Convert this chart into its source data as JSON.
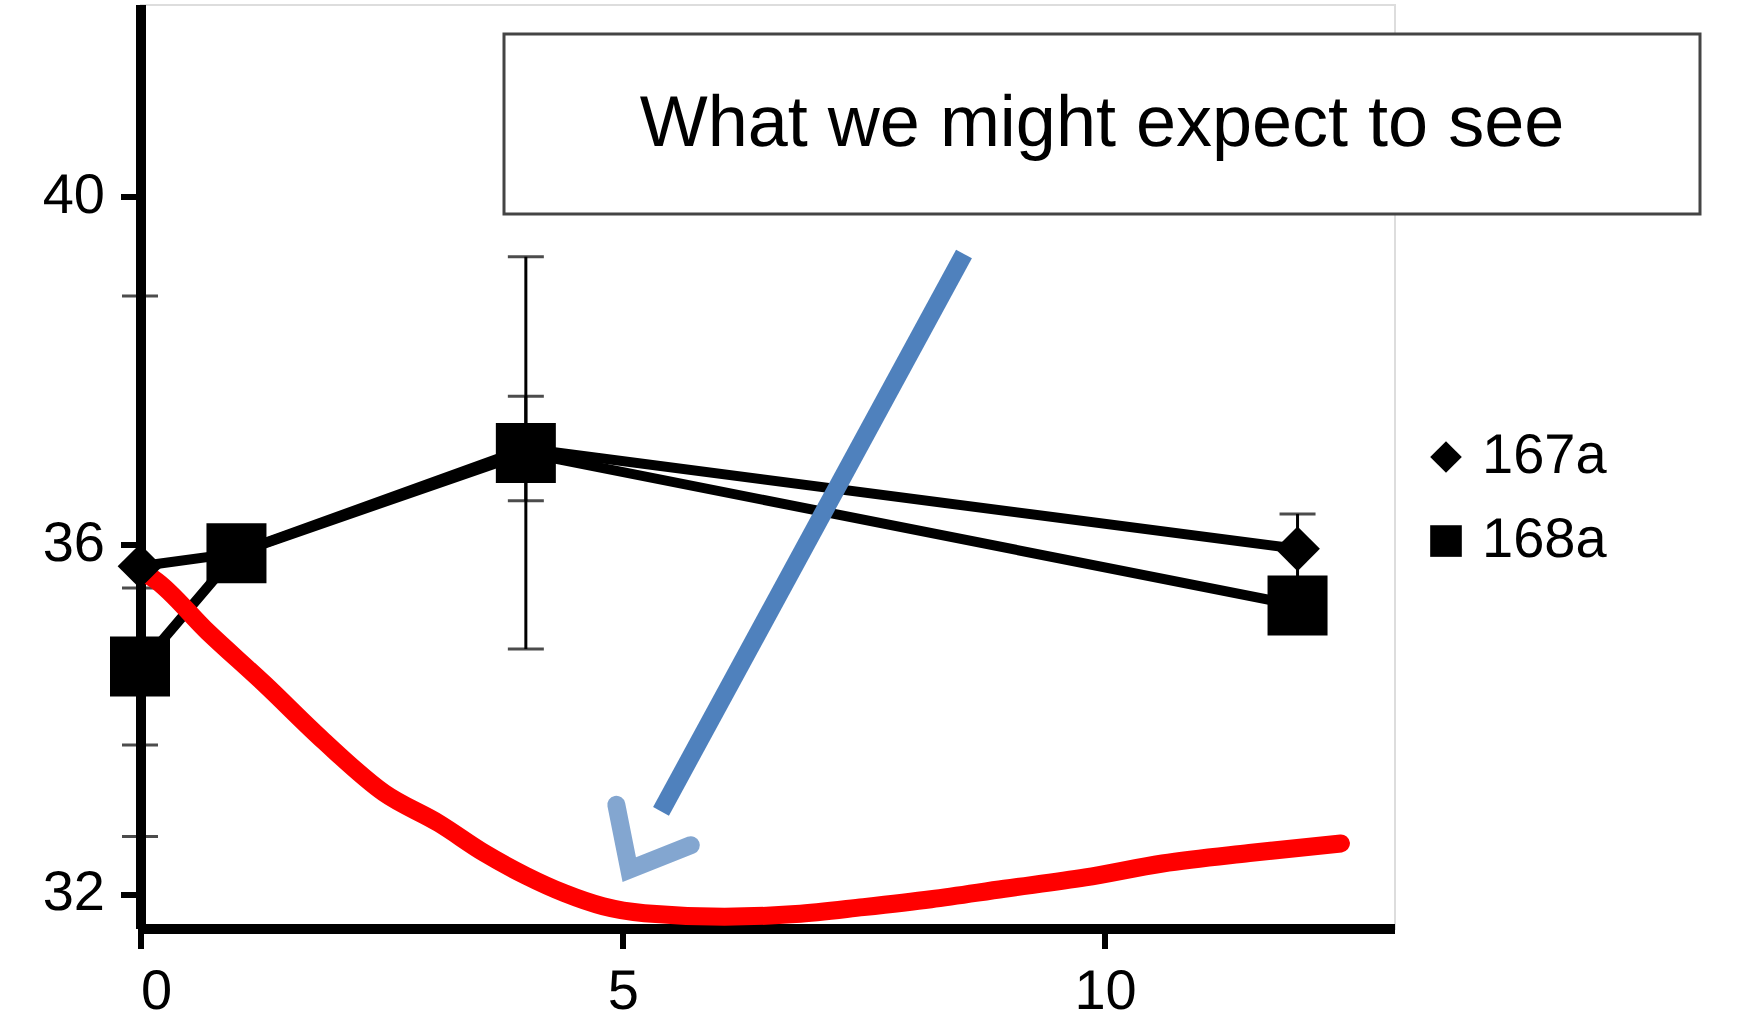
{
  "chart_data": {
    "type": "line",
    "xlim": [
      0,
      13
    ],
    "ylim": [
      31.6,
      42.2
    ],
    "xticks": [
      0,
      5,
      10
    ],
    "yticks": [
      32,
      36,
      40
    ],
    "grid": false,
    "legend": "right",
    "line_style": "solid",
    "series": [
      {
        "name": "167a",
        "color": "#000000",
        "marker": "diamond",
        "x": [
          0,
          1,
          4,
          12
        ],
        "values": [
          35.75,
          35.9,
          37.1,
          35.95
        ],
        "errors": [
          3.1,
          null,
          0.6,
          0.4
        ]
      },
      {
        "name": "168a",
        "color": "#000000",
        "marker": "square",
        "x": [
          0,
          1,
          4,
          12
        ],
        "values": [
          34.6,
          35.9,
          37.05,
          35.3
        ],
        "errors": [
          0.9,
          null,
          2.25,
          null
        ]
      },
      {
        "color": "#ff0000",
        "marker": "none",
        "x": [
          0,
          0.15,
          0.7,
          1.29,
          1.9,
          2.53,
          3.1,
          3.57,
          4.0,
          4.4,
          4.8,
          5.23,
          6.06,
          6.8,
          7.5,
          8.2,
          8.96,
          9.8,
          10.6,
          11.5,
          12.45
        ],
        "values": [
          35.7,
          35.6,
          35.0,
          34.4,
          33.75,
          33.15,
          32.8,
          32.46,
          32.2,
          32.0,
          31.85,
          31.77,
          31.73,
          31.76,
          31.84,
          31.93,
          32.05,
          32.18,
          32.34,
          32.46,
          32.57
        ]
      }
    ],
    "annotations": [
      "What we might expect to see"
    ]
  }
}
